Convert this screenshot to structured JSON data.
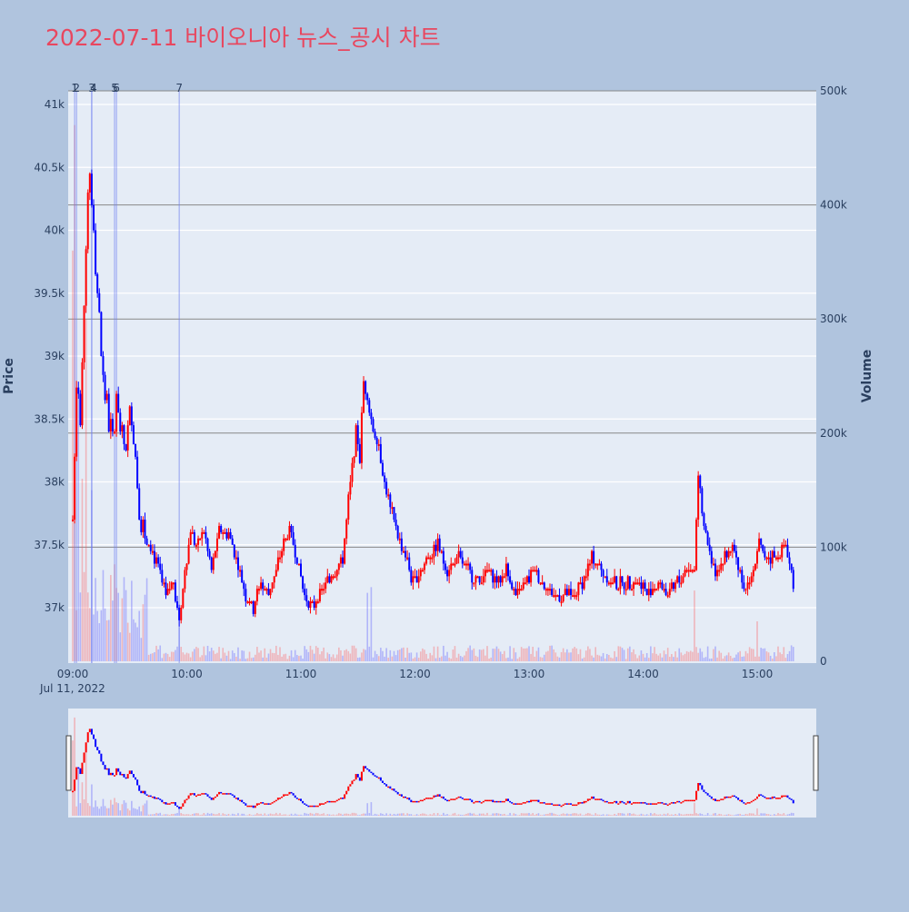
{
  "chart_data": {
    "type": "candlestick",
    "title": "2022-07-11 바이오니아 뉴스_공시 차트",
    "ylabel": "Price",
    "y2label": "Volume",
    "date_label": "Jul 11, 2022",
    "ylim": [
      36600,
      41150
    ],
    "y2lim": [
      0,
      500000
    ],
    "price_ticks": [
      37000,
      37500,
      38000,
      38500,
      39000,
      39500,
      40000,
      40500,
      41000
    ],
    "price_tick_labels": [
      "37k",
      "37.5k",
      "38k",
      "38.5k",
      "39k",
      "39.5k",
      "40k",
      "40.5k",
      "41k"
    ],
    "volume_ticks": [
      0,
      100000,
      200000,
      300000,
      400000,
      500000
    ],
    "volume_tick_labels": [
      "0",
      "100k",
      "200k",
      "300k",
      "400k",
      "500k"
    ],
    "x_range": [
      "09:00",
      "15:30"
    ],
    "x_ticks": [
      "09:00",
      "10:00",
      "11:00",
      "12:00",
      "13:00",
      "14:00",
      "15:00"
    ],
    "up_color": "#ff0000",
    "down_color": "#0000ff",
    "events": [
      {
        "label": "1",
        "time": "09:01"
      },
      {
        "label": "2",
        "time": "09:02"
      },
      {
        "label": "3",
        "time": "09:10"
      },
      {
        "label": "4",
        "time": "09:10"
      },
      {
        "label": "5",
        "time": "09:22"
      },
      {
        "label": "6",
        "time": "09:23"
      },
      {
        "label": "7",
        "time": "09:56"
      }
    ],
    "close_series_approx": [
      {
        "t": "09:00",
        "v": 37700
      },
      {
        "t": "09:02",
        "v": 38900
      },
      {
        "t": "09:04",
        "v": 38600
      },
      {
        "t": "09:06",
        "v": 39500
      },
      {
        "t": "09:08",
        "v": 40400
      },
      {
        "t": "09:09",
        "v": 40500
      },
      {
        "t": "09:11",
        "v": 40100
      },
      {
        "t": "09:13",
        "v": 39500
      },
      {
        "t": "09:16",
        "v": 38800
      },
      {
        "t": "09:19",
        "v": 38500
      },
      {
        "t": "09:21",
        "v": 38300
      },
      {
        "t": "09:23",
        "v": 38800
      },
      {
        "t": "09:26",
        "v": 38300
      },
      {
        "t": "09:28",
        "v": 38300
      },
      {
        "t": "09:31",
        "v": 38600
      },
      {
        "t": "09:34",
        "v": 38000
      },
      {
        "t": "09:37",
        "v": 37600
      },
      {
        "t": "09:41",
        "v": 37500
      },
      {
        "t": "09:45",
        "v": 37300
      },
      {
        "t": "09:49",
        "v": 37100
      },
      {
        "t": "09:53",
        "v": 37200
      },
      {
        "t": "09:56",
        "v": 36900
      },
      {
        "t": "09:59",
        "v": 37300
      },
      {
        "t": "10:02",
        "v": 37600
      },
      {
        "t": "10:05",
        "v": 37500
      },
      {
        "t": "10:09",
        "v": 37600
      },
      {
        "t": "10:13",
        "v": 37300
      },
      {
        "t": "10:17",
        "v": 37600
      },
      {
        "t": "10:22",
        "v": 37600
      },
      {
        "t": "10:26",
        "v": 37400
      },
      {
        "t": "10:31",
        "v": 37100
      },
      {
        "t": "10:35",
        "v": 37000
      },
      {
        "t": "10:39",
        "v": 37200
      },
      {
        "t": "10:43",
        "v": 37100
      },
      {
        "t": "10:47",
        "v": 37300
      },
      {
        "t": "10:51",
        "v": 37500
      },
      {
        "t": "10:54",
        "v": 37600
      },
      {
        "t": "10:58",
        "v": 37400
      },
      {
        "t": "11:02",
        "v": 37100
      },
      {
        "t": "11:06",
        "v": 37000
      },
      {
        "t": "11:10",
        "v": 37100
      },
      {
        "t": "11:14",
        "v": 37200
      },
      {
        "t": "11:18",
        "v": 37300
      },
      {
        "t": "11:22",
        "v": 37400
      },
      {
        "t": "11:26",
        "v": 38000
      },
      {
        "t": "11:29",
        "v": 38400
      },
      {
        "t": "11:31",
        "v": 38200
      },
      {
        "t": "11:33",
        "v": 38800
      },
      {
        "t": "11:35",
        "v": 38700
      },
      {
        "t": "11:38",
        "v": 38400
      },
      {
        "t": "11:41",
        "v": 38300
      },
      {
        "t": "11:44",
        "v": 38000
      },
      {
        "t": "11:47",
        "v": 37800
      },
      {
        "t": "11:51",
        "v": 37600
      },
      {
        "t": "11:55",
        "v": 37400
      },
      {
        "t": "11:59",
        "v": 37200
      },
      {
        "t": "12:03",
        "v": 37300
      },
      {
        "t": "12:07",
        "v": 37400
      },
      {
        "t": "12:12",
        "v": 37500
      },
      {
        "t": "12:17",
        "v": 37300
      },
      {
        "t": "12:23",
        "v": 37400
      },
      {
        "t": "12:28",
        "v": 37300
      },
      {
        "t": "12:33",
        "v": 37200
      },
      {
        "t": "12:38",
        "v": 37300
      },
      {
        "t": "12:43",
        "v": 37200
      },
      {
        "t": "12:48",
        "v": 37300
      },
      {
        "t": "12:53",
        "v": 37100
      },
      {
        "t": "12:58",
        "v": 37200
      },
      {
        "t": "13:03",
        "v": 37300
      },
      {
        "t": "13:08",
        "v": 37200
      },
      {
        "t": "13:13",
        "v": 37100
      },
      {
        "t": "13:18",
        "v": 37100
      },
      {
        "t": "13:23",
        "v": 37100
      },
      {
        "t": "13:28",
        "v": 37200
      },
      {
        "t": "13:33",
        "v": 37400
      },
      {
        "t": "13:38",
        "v": 37300
      },
      {
        "t": "13:43",
        "v": 37200
      },
      {
        "t": "13:48",
        "v": 37200
      },
      {
        "t": "13:53",
        "v": 37200
      },
      {
        "t": "13:58",
        "v": 37200
      },
      {
        "t": "14:03",
        "v": 37100
      },
      {
        "t": "14:08",
        "v": 37200
      },
      {
        "t": "14:13",
        "v": 37100
      },
      {
        "t": "14:18",
        "v": 37200
      },
      {
        "t": "14:23",
        "v": 37300
      },
      {
        "t": "14:27",
        "v": 37300
      },
      {
        "t": "14:29",
        "v": 38100
      },
      {
        "t": "14:31",
        "v": 37700
      },
      {
        "t": "14:34",
        "v": 37500
      },
      {
        "t": "14:38",
        "v": 37300
      },
      {
        "t": "14:43",
        "v": 37400
      },
      {
        "t": "14:48",
        "v": 37500
      },
      {
        "t": "14:53",
        "v": 37100
      },
      {
        "t": "14:58",
        "v": 37300
      },
      {
        "t": "15:01",
        "v": 37500
      },
      {
        "t": "15:05",
        "v": 37400
      },
      {
        "t": "15:10",
        "v": 37400
      },
      {
        "t": "15:15",
        "v": 37500
      },
      {
        "t": "15:19",
        "v": 37200
      }
    ],
    "volume_spikes_approx": [
      {
        "t": "09:00",
        "v": 360000
      },
      {
        "t": "09:01",
        "v": 470000
      },
      {
        "t": "09:03",
        "v": 230000
      },
      {
        "t": "09:05",
        "v": 160000
      },
      {
        "t": "09:07",
        "v": 300000
      },
      {
        "t": "09:10",
        "v": 150000
      },
      {
        "t": "09:16",
        "v": 80000
      },
      {
        "t": "09:22",
        "v": 85000
      },
      {
        "t": "09:24",
        "v": 60000
      },
      {
        "t": "09:37",
        "v": 50000
      },
      {
        "t": "09:56",
        "v": 30000
      },
      {
        "t": "11:35",
        "v": 60000
      },
      {
        "t": "11:37",
        "v": 65000
      },
      {
        "t": "14:27",
        "v": 62000
      },
      {
        "t": "15:00",
        "v": 35000
      },
      {
        "t": "15:29",
        "v": 50000
      }
    ]
  }
}
